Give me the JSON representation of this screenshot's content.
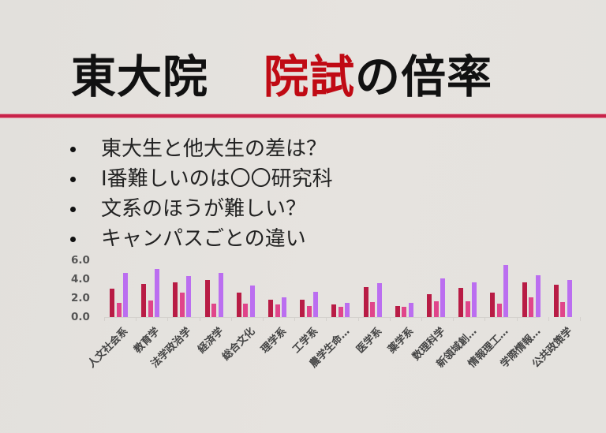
{
  "slide": {
    "title_part1": "東大院",
    "title_part2_accent": "院試",
    "title_part3": "の倍率",
    "bullets": [
      "東大生と他大生の差は？",
      "I番難しいのは〇〇研究科",
      "文系のほうが難しい？",
      "キャンパスごとの違い"
    ],
    "colors": {
      "title_accent": "#c00a14",
      "rule": "#c8234a",
      "background": "#e3e1dd"
    }
  },
  "chart_data": {
    "type": "bar",
    "title": "",
    "xlabel": "",
    "ylabel": "",
    "ylim": [
      0,
      6
    ],
    "yticks": [
      "0.0",
      "2.0",
      "4.0",
      "6.0"
    ],
    "grid": false,
    "legend": "none",
    "categories": [
      "人文社会系",
      "教育学",
      "法学政治学",
      "経済学",
      "総合文化",
      "理学系",
      "工学系",
      "農学生命…",
      "医学系",
      "薬学系",
      "数理科学",
      "新領域創…",
      "情報理工…",
      "学際情報…",
      "公共政策学"
    ],
    "series": [
      {
        "name": "series1",
        "color": "#b81c45",
        "values": [
          3.0,
          3.5,
          3.7,
          3.9,
          2.6,
          1.8,
          1.8,
          1.3,
          3.2,
          1.2,
          2.4,
          3.1,
          2.6,
          3.7,
          3.4
        ]
      },
      {
        "name": "series2",
        "color": "#e0458a",
        "values": [
          1.5,
          1.75,
          2.6,
          1.4,
          1.4,
          1.3,
          1.2,
          1.1,
          1.6,
          1.1,
          1.7,
          1.7,
          1.4,
          2.1,
          1.6
        ]
      },
      {
        "name": "series3",
        "color": "#bb6ef0",
        "values": [
          4.7,
          5.1,
          4.3,
          4.7,
          3.3,
          2.1,
          2.7,
          1.5,
          3.6,
          1.5,
          4.1,
          3.7,
          5.5,
          4.4,
          3.9
        ]
      }
    ]
  }
}
